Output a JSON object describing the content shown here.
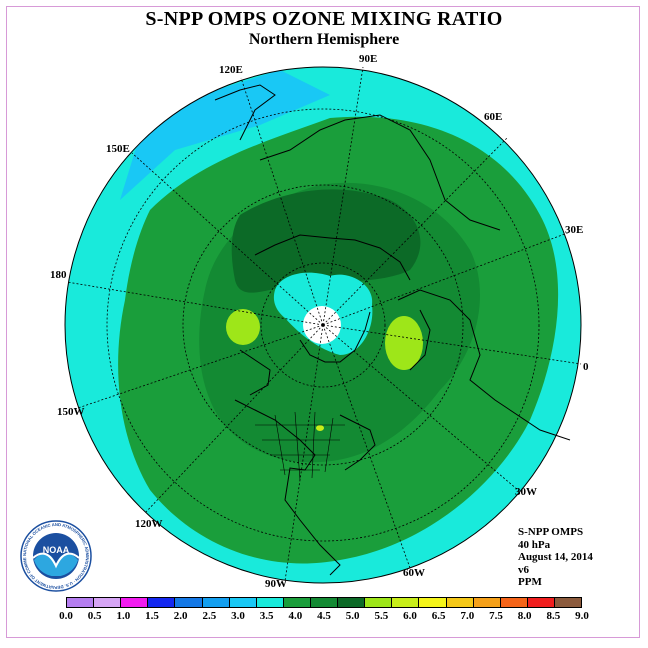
{
  "header": {
    "title": "S-NPP OMPS OZONE MIXING RATIO",
    "subtitle": "Northern Hemisphere"
  },
  "map": {
    "projection": "polar-stereographic-north",
    "longitude_labels": [
      "0",
      "30E",
      "60E",
      "90E",
      "120E",
      "150E",
      "180",
      "150W",
      "120W",
      "90W",
      "60W",
      "30W"
    ],
    "background_color": "#19eadb",
    "missing_data_color": "#ffffff"
  },
  "info": {
    "instrument": "S-NPP OMPS",
    "level": "40 hPa",
    "date": "August 14, 2014",
    "version": "v6",
    "units": "PPM"
  },
  "colorbar": {
    "ticks": [
      "0.0",
      "0.5",
      "1.0",
      "1.5",
      "2.0",
      "2.5",
      "3.0",
      "3.5",
      "4.0",
      "4.5",
      "5.0",
      "5.5",
      "6.0",
      "6.5",
      "7.0",
      "7.5",
      "8.0",
      "8.5",
      "9.0"
    ],
    "colors": [
      "#b57ef0",
      "#d6a5f5",
      "#f21cf0",
      "#1428f0",
      "#1478e6",
      "#139ff0",
      "#19c8f5",
      "#19eadb",
      "#1a9e3b",
      "#138a33",
      "#0c6a27",
      "#9ee619",
      "#c8ee19",
      "#f5f51a",
      "#f5c818",
      "#f5a019",
      "#f56419",
      "#f01e1e",
      "#8b5a3c"
    ]
  },
  "logo": {
    "text": "NOAA",
    "ring_text": "NATIONAL OCEANIC AND ATMOSPHERIC ADMINISTRATION · U.S. DEPARTMENT OF COMMERCE"
  }
}
